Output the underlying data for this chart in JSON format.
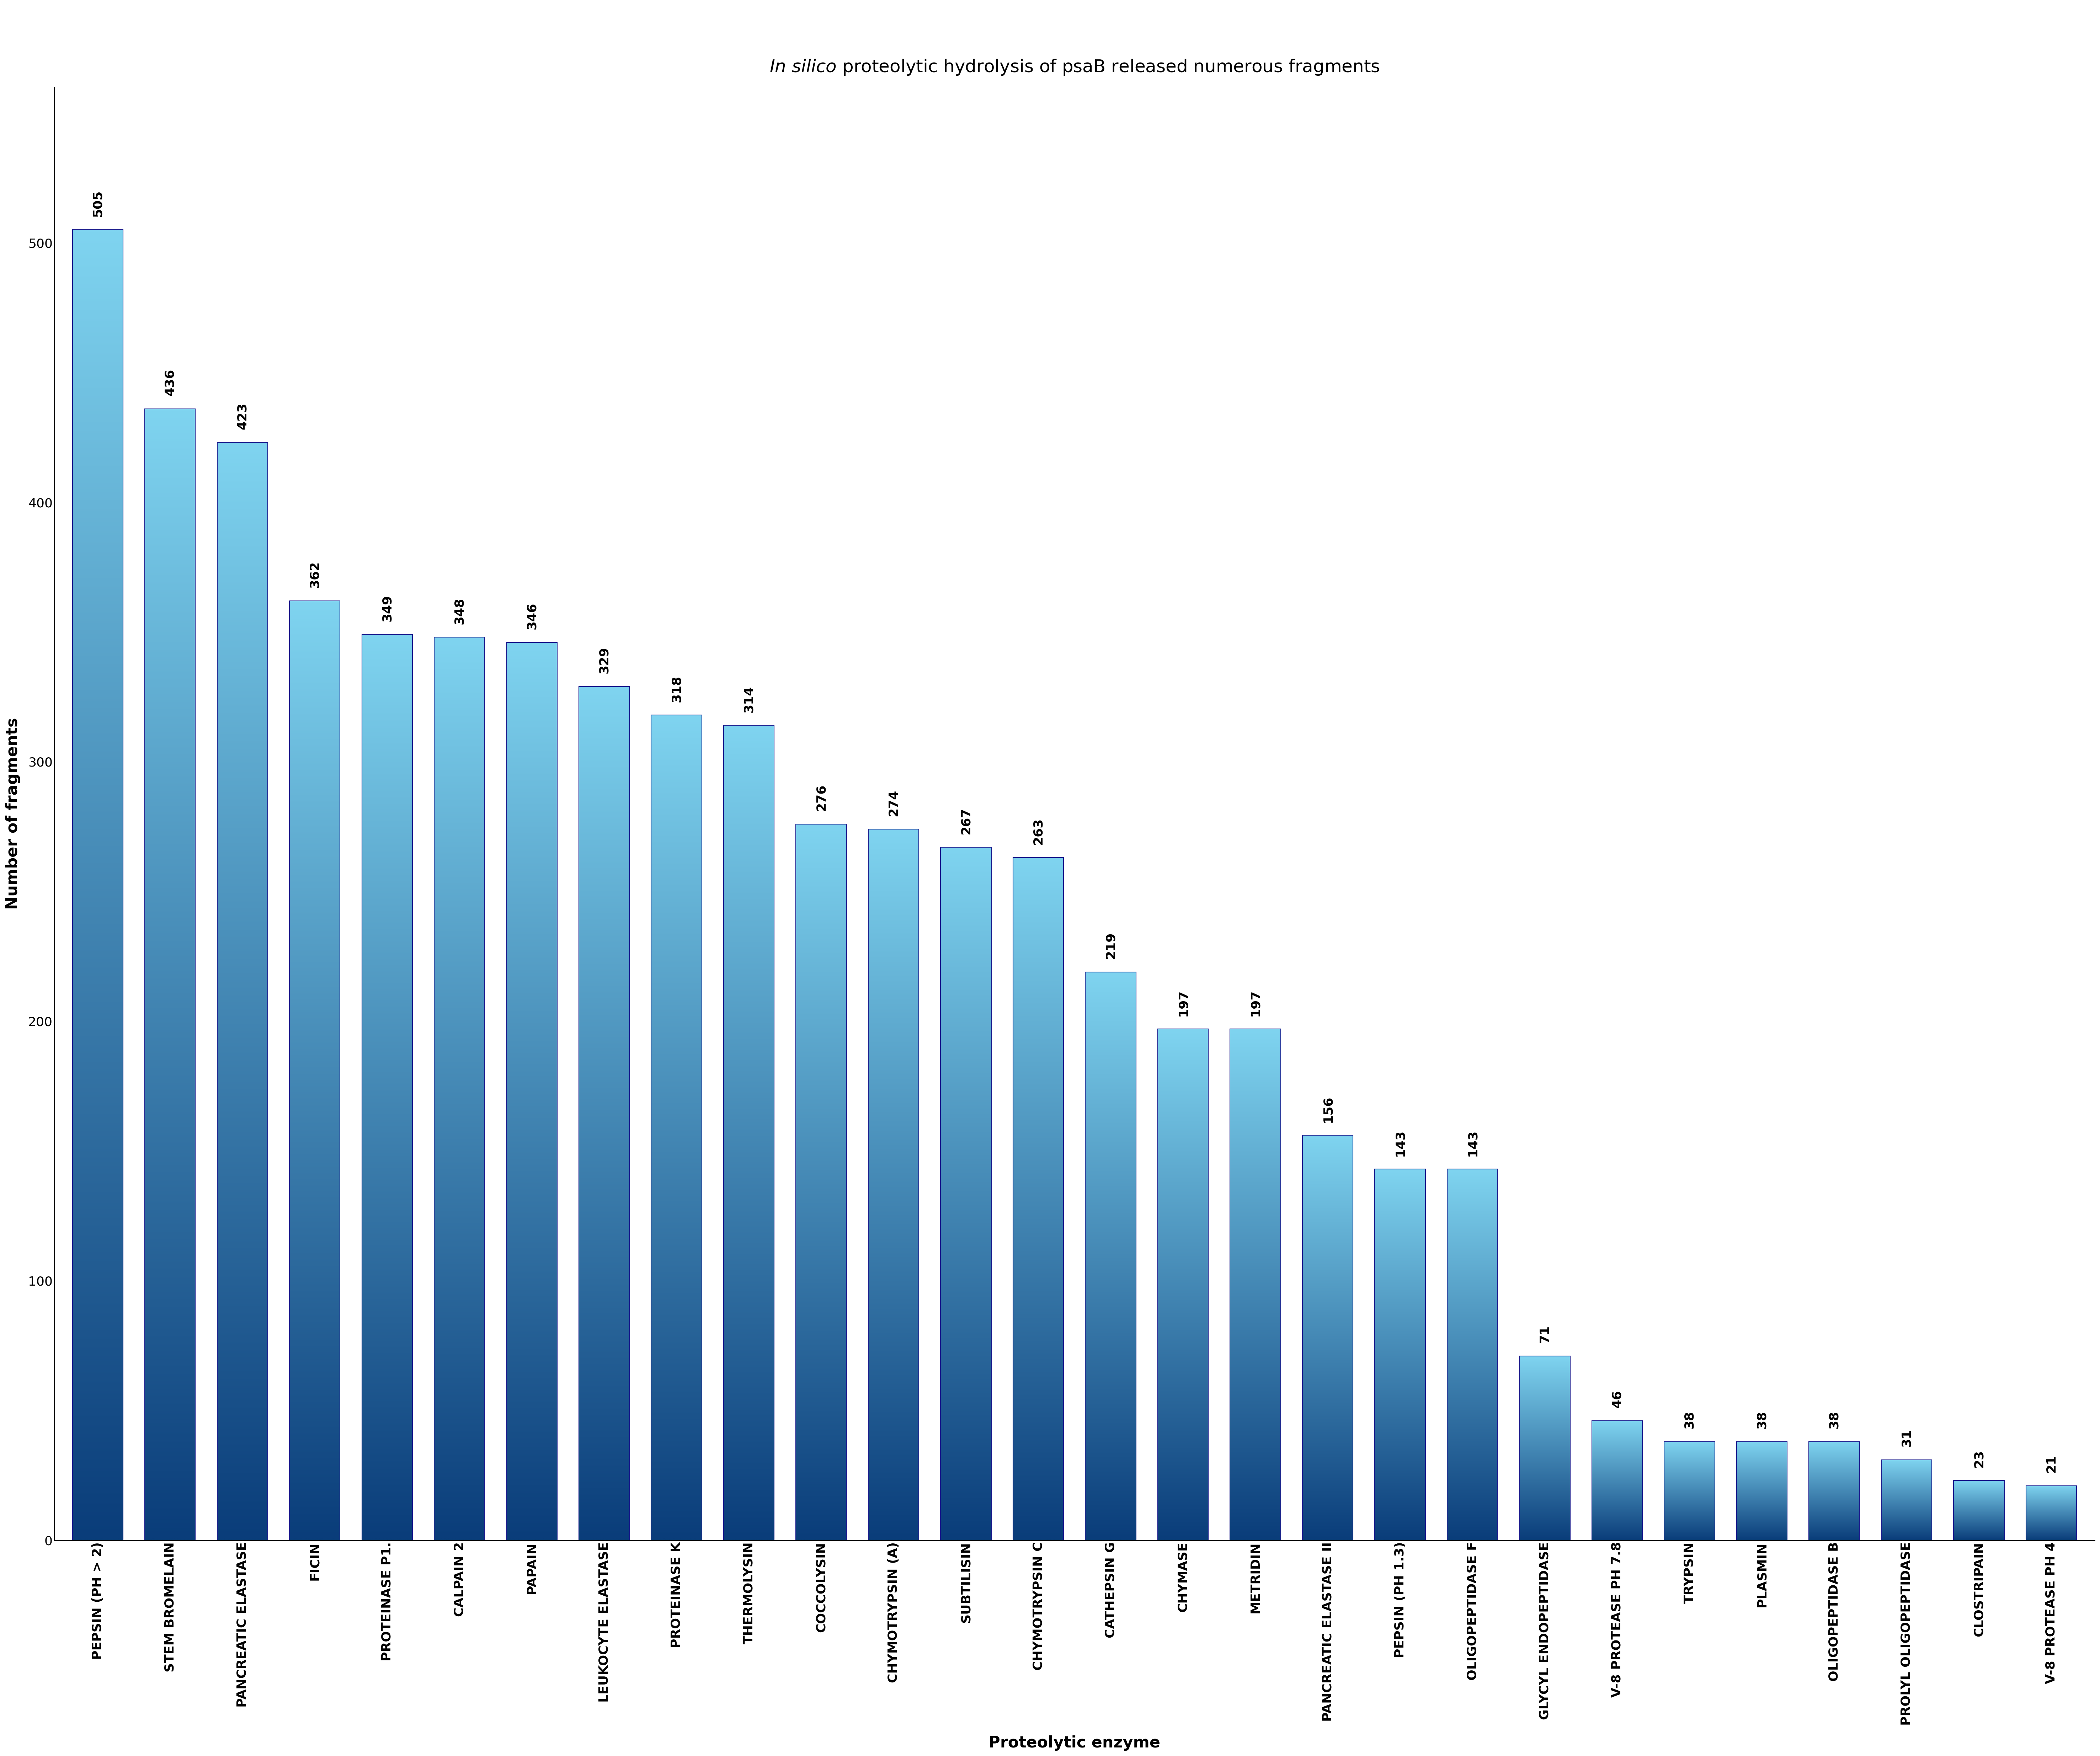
{
  "title": "In silico proteolytic hydrolysis of psaB released numerous fragments",
  "title_italic_part": "In silico",
  "xlabel": "Proteolytic enzyme",
  "ylabel": "Number of fragments",
  "categories": [
    "PEPSIN (PH > 2)",
    "STEM BROMELAIN",
    "PANCREATIC ELASTASE",
    "FICIN",
    "PROTEINASE P1.",
    "CALPAIN 2",
    "PAPAIN",
    "LEUKOCYTE ELASTASE",
    "PROTEINASE K",
    "THERMOLYSIN",
    "COCCOLYSIN",
    "CHYMOTRYPSIN (A)",
    "SUBTILISIN",
    "CHYMOTRYPSIN C",
    "CATHEPSIN G",
    "CHYMASE",
    "METRIDIN",
    "PANCREATIC ELASTASE II",
    "PEPSIN (PH 1.3)",
    "OLIGOPEPTIDASE F",
    "GLYCYL ENDOPEPTIDASE",
    "V-8 PROTEASE PH 7.8",
    "TRYPSIN",
    "PLASMIN",
    "OLIGOPEPTIDASE B",
    "PROLYL OLIGOPEPTIDASE",
    "CLOSTRIPAIN",
    "V-8 PROTEASE PH 4"
  ],
  "values": [
    505,
    436,
    423,
    362,
    349,
    348,
    346,
    329,
    318,
    314,
    276,
    274,
    267,
    263,
    219,
    197,
    197,
    156,
    143,
    143,
    71,
    46,
    38,
    38,
    38,
    31,
    23,
    21
  ],
  "bar_color_top": "#7fd4f0",
  "bar_color_bottom": "#0a3d7a",
  "background_color": "#ffffff",
  "title_fontsize": 36,
  "axis_label_fontsize": 32,
  "tick_label_fontsize": 26,
  "value_label_fontsize": 26,
  "ylim": [
    0,
    560
  ]
}
